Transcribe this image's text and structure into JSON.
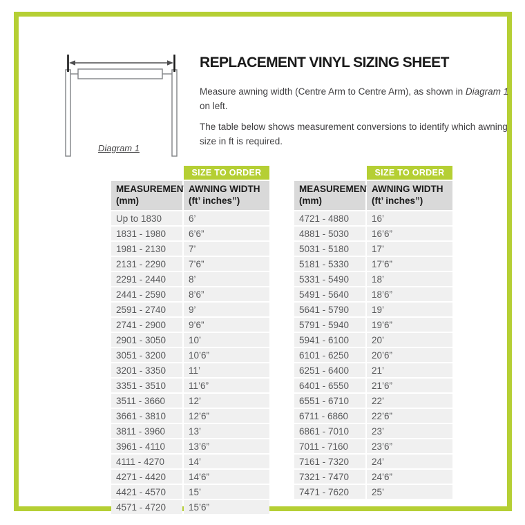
{
  "colors": {
    "accent_green": "#b5cf34",
    "header_gray": "#d9d9d9",
    "row_gray": "#f0f0f0"
  },
  "intro": {
    "title": "REPLACEMENT VINYL SIZING SHEET",
    "para1_pre": "Measure awning width (Centre Arm to Centre Arm), as shown in ",
    "para1_italic": "Diagram 1",
    "para1_post": " on left.",
    "para2": "The table below shows measurement conversions to identify which awning size in ft is required.",
    "diagram_label": "Diagram 1"
  },
  "tables": [
    {
      "badge": "SIZE TO ORDER",
      "col1_header": "MEASUREMENTS",
      "col1_header_sub": "(mm)",
      "col2_header": "AWNING WIDTH",
      "col2_header_sub": "(ft’ inches”)",
      "rows": [
        [
          "Up to 1830",
          "6’"
        ],
        [
          "1831 - 1980",
          "6’6”"
        ],
        [
          "1981 - 2130",
          "7’"
        ],
        [
          "2131 - 2290",
          "7’6”"
        ],
        [
          "2291 - 2440",
          "8’"
        ],
        [
          "2441 - 2590",
          "8’6”"
        ],
        [
          "2591 - 2740",
          "9’"
        ],
        [
          "2741 - 2900",
          "9’6”"
        ],
        [
          "2901 - 3050",
          "10’"
        ],
        [
          "3051 - 3200",
          "10’6”"
        ],
        [
          "3201 - 3350",
          "11’"
        ],
        [
          "3351 - 3510",
          "11’6”"
        ],
        [
          "3511 - 3660",
          "12’"
        ],
        [
          "3661 - 3810",
          "12’6”"
        ],
        [
          "3811 - 3960",
          "13’"
        ],
        [
          "3961 - 4110",
          "13’6”"
        ],
        [
          "4111 - 4270",
          "14’"
        ],
        [
          "4271 - 4420",
          "14’6”"
        ],
        [
          "4421 - 4570",
          "15’"
        ],
        [
          "4571 - 4720",
          "15’6”"
        ]
      ]
    },
    {
      "badge": "SIZE TO ORDER",
      "col1_header": "MEASUREMENTS",
      "col1_header_sub": "(mm)",
      "col2_header": "AWNING WIDTH",
      "col2_header_sub": "(ft’ inches”)",
      "rows": [
        [
          "4721 - 4880",
          "16’"
        ],
        [
          "4881 - 5030",
          "16’6”"
        ],
        [
          "5031 - 5180",
          "17’"
        ],
        [
          "5181 - 5330",
          "17’6”"
        ],
        [
          "5331 - 5490",
          "18’"
        ],
        [
          "5491 - 5640",
          "18’6”"
        ],
        [
          "5641 - 5790",
          "19’"
        ],
        [
          "5791 - 5940",
          "19’6”"
        ],
        [
          "5941 - 6100",
          "20’"
        ],
        [
          "6101 - 6250",
          "20’6”"
        ],
        [
          "6251 - 6400",
          "21’"
        ],
        [
          "6401 - 6550",
          "21’6”"
        ],
        [
          "6551 - 6710",
          "22’"
        ],
        [
          "6711 - 6860",
          "22’6”"
        ],
        [
          "6861 - 7010",
          "23’"
        ],
        [
          "7011 - 7160",
          "23’6”"
        ],
        [
          "7161 - 7320",
          "24’"
        ],
        [
          "7321 - 7470",
          "24’6”"
        ],
        [
          "7471 - 7620",
          "25’"
        ]
      ]
    }
  ]
}
